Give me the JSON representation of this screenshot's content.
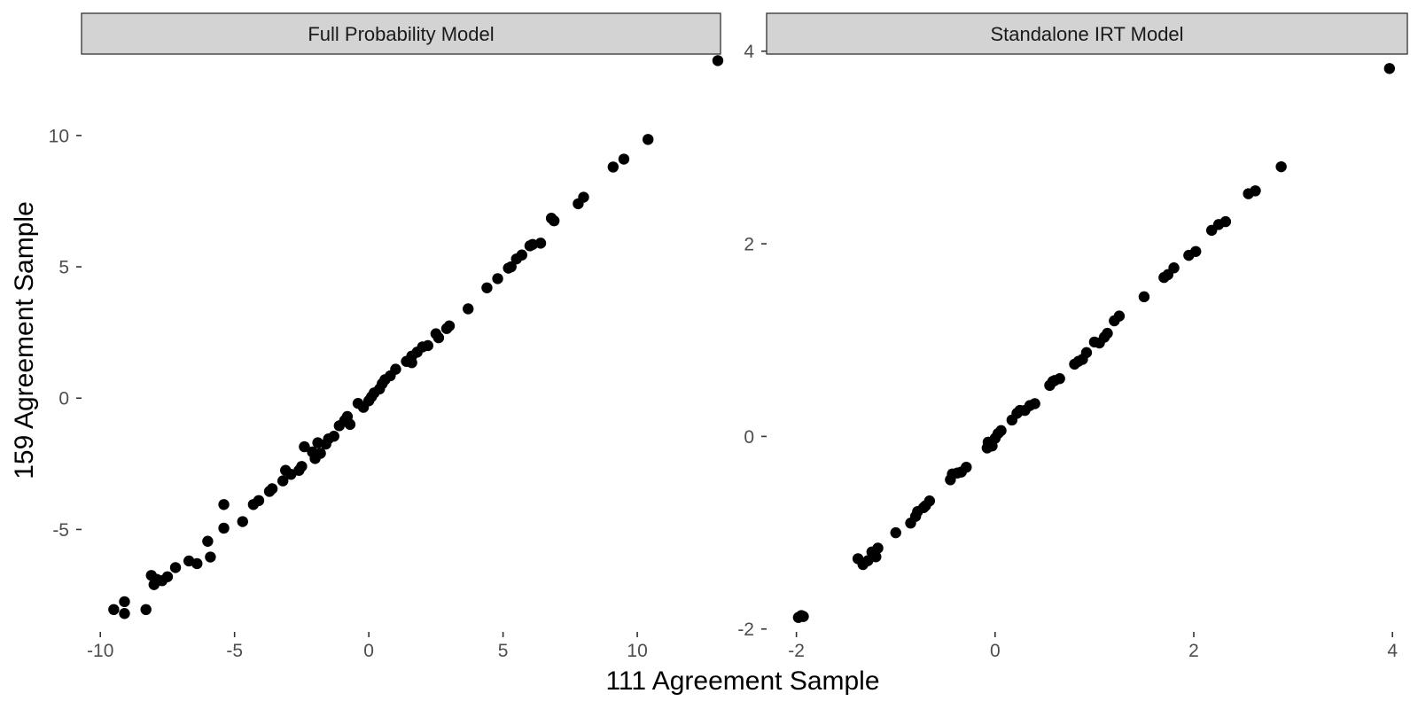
{
  "chart_data": {
    "type": "scatter",
    "xlabel": "111 Agreement Sample",
    "ylabel": "159 Agreement Sample",
    "panels": [
      {
        "strip_title": "Full Probability Model",
        "xlim": [
          -10.7,
          13.1
        ],
        "ylim": [
          -8.9,
          13.1
        ],
        "x_ticks": [
          -10,
          -5,
          0,
          5,
          10
        ],
        "y_ticks": [
          -5,
          0,
          5,
          10
        ],
        "x_tick_labels": [
          "-10",
          "-5",
          "0",
          "5",
          "10"
        ],
        "y_tick_labels": [
          "-5",
          "0",
          "5",
          "10"
        ],
        "points": [
          [
            -9.5,
            -8.05
          ],
          [
            -9.1,
            -8.2
          ],
          [
            -9.1,
            -7.75
          ],
          [
            -8.3,
            -8.05
          ],
          [
            -8.1,
            -6.75
          ],
          [
            -8.0,
            -7.1
          ],
          [
            -7.9,
            -6.9
          ],
          [
            -7.7,
            -6.95
          ],
          [
            -7.5,
            -6.8
          ],
          [
            -7.2,
            -6.45
          ],
          [
            -6.7,
            -6.2
          ],
          [
            -6.4,
            -6.3
          ],
          [
            -5.9,
            -6.05
          ],
          [
            -6.0,
            -5.45
          ],
          [
            -5.4,
            -4.95
          ],
          [
            -5.4,
            -4.05
          ],
          [
            -4.7,
            -4.7
          ],
          [
            -4.3,
            -4.05
          ],
          [
            -4.1,
            -3.9
          ],
          [
            -3.7,
            -3.55
          ],
          [
            -3.6,
            -3.45
          ],
          [
            -3.2,
            -3.15
          ],
          [
            -3.1,
            -2.75
          ],
          [
            -2.9,
            -2.9
          ],
          [
            -2.6,
            -2.75
          ],
          [
            -2.5,
            -2.6
          ],
          [
            -2.4,
            -1.85
          ],
          [
            -2.1,
            -2.05
          ],
          [
            -2.0,
            -2.3
          ],
          [
            -1.9,
            -1.7
          ],
          [
            -1.8,
            -2.1
          ],
          [
            -1.6,
            -1.75
          ],
          [
            -1.5,
            -1.55
          ],
          [
            -1.3,
            -1.45
          ],
          [
            -1.1,
            -1.05
          ],
          [
            -0.9,
            -0.85
          ],
          [
            -0.8,
            -0.7
          ],
          [
            -0.7,
            -1.0
          ],
          [
            -0.4,
            -0.2
          ],
          [
            -0.2,
            -0.35
          ],
          [
            0.0,
            -0.1
          ],
          [
            0.1,
            0.05
          ],
          [
            0.2,
            0.2
          ],
          [
            0.4,
            0.35
          ],
          [
            0.5,
            0.55
          ],
          [
            0.6,
            0.7
          ],
          [
            0.8,
            0.85
          ],
          [
            1.0,
            1.1
          ],
          [
            1.4,
            1.4
          ],
          [
            1.6,
            1.35
          ],
          [
            1.6,
            1.6
          ],
          [
            1.8,
            1.75
          ],
          [
            2.0,
            1.95
          ],
          [
            2.2,
            2.0
          ],
          [
            2.5,
            2.45
          ],
          [
            2.6,
            2.3
          ],
          [
            2.9,
            2.65
          ],
          [
            3.0,
            2.75
          ],
          [
            3.7,
            3.4
          ],
          [
            4.4,
            4.2
          ],
          [
            4.8,
            4.55
          ],
          [
            5.2,
            4.95
          ],
          [
            5.3,
            5.0
          ],
          [
            5.5,
            5.3
          ],
          [
            5.7,
            5.45
          ],
          [
            6.0,
            5.8
          ],
          [
            6.1,
            5.85
          ],
          [
            6.4,
            5.9
          ],
          [
            6.8,
            6.85
          ],
          [
            6.9,
            6.75
          ],
          [
            7.8,
            7.4
          ],
          [
            8.0,
            7.65
          ],
          [
            9.1,
            8.8
          ],
          [
            9.5,
            9.1
          ],
          [
            10.4,
            9.85
          ],
          [
            13.0,
            12.85
          ]
        ]
      },
      {
        "strip_title": "Standalone IRT Model",
        "xlim": [
          -2.3,
          4.15
        ],
        "ylim": [
          -2.03,
          3.97
        ],
        "x_ticks": [
          -2,
          0,
          2,
          4
        ],
        "y_ticks": [
          -2,
          0,
          2,
          4
        ],
        "x_tick_labels": [
          "-2",
          "0",
          "2",
          "4"
        ],
        "y_tick_labels": [
          "-2",
          "0",
          "2",
          "4"
        ],
        "points": [
          [
            -1.98,
            -1.88
          ],
          [
            -1.95,
            -1.86
          ],
          [
            -1.93,
            -1.87
          ],
          [
            -1.38,
            -1.27
          ],
          [
            -1.33,
            -1.33
          ],
          [
            -1.28,
            -1.29
          ],
          [
            -1.24,
            -1.2
          ],
          [
            -1.2,
            -1.25
          ],
          [
            -1.18,
            -1.16
          ],
          [
            -1.0,
            -1.0
          ],
          [
            -0.85,
            -0.9
          ],
          [
            -0.8,
            -0.83
          ],
          [
            -0.78,
            -0.78
          ],
          [
            -0.72,
            -0.74
          ],
          [
            -0.7,
            -0.72
          ],
          [
            -0.66,
            -0.67
          ],
          [
            -0.45,
            -0.45
          ],
          [
            -0.43,
            -0.39
          ],
          [
            -0.38,
            -0.38
          ],
          [
            -0.34,
            -0.37
          ],
          [
            -0.29,
            -0.32
          ],
          [
            -0.08,
            -0.12
          ],
          [
            -0.07,
            -0.06
          ],
          [
            -0.03,
            -0.1
          ],
          [
            0.0,
            -0.02
          ],
          [
            0.03,
            0.03
          ],
          [
            0.06,
            0.06
          ],
          [
            0.17,
            0.17
          ],
          [
            0.22,
            0.24
          ],
          [
            0.25,
            0.27
          ],
          [
            0.3,
            0.27
          ],
          [
            0.35,
            0.32
          ],
          [
            0.4,
            0.34
          ],
          [
            0.55,
            0.53
          ],
          [
            0.58,
            0.57
          ],
          [
            0.6,
            0.58
          ],
          [
            0.65,
            0.6
          ],
          [
            0.8,
            0.75
          ],
          [
            0.84,
            0.78
          ],
          [
            0.88,
            0.8
          ],
          [
            0.92,
            0.87
          ],
          [
            1.0,
            0.98
          ],
          [
            1.05,
            0.97
          ],
          [
            1.1,
            1.03
          ],
          [
            1.13,
            1.07
          ],
          [
            1.2,
            1.2
          ],
          [
            1.25,
            1.25
          ],
          [
            1.5,
            1.45
          ],
          [
            1.7,
            1.65
          ],
          [
            1.74,
            1.68
          ],
          [
            1.8,
            1.75
          ],
          [
            1.95,
            1.88
          ],
          [
            2.02,
            1.92
          ],
          [
            2.18,
            2.14
          ],
          [
            2.25,
            2.2
          ],
          [
            2.32,
            2.23
          ],
          [
            2.55,
            2.52
          ],
          [
            2.62,
            2.55
          ],
          [
            2.88,
            2.8
          ],
          [
            3.97,
            3.82
          ]
        ]
      }
    ]
  }
}
